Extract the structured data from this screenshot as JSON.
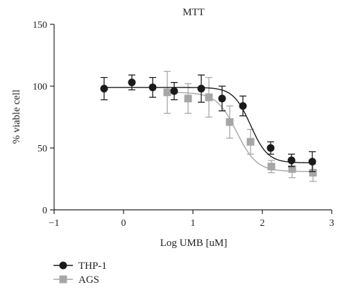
{
  "chart_data": {
    "type": "scatter",
    "title": "MTT",
    "xlabel": "Log UMB [uM]",
    "ylabel": "% viable cell",
    "xlim": [
      -1,
      3
    ],
    "ylim": [
      0,
      150
    ],
    "xticks": [
      -1,
      0,
      1,
      2,
      3
    ],
    "xtick_labels": [
      "−1",
      "0",
      "1",
      "2",
      "3"
    ],
    "yticks": [
      0,
      50,
      100,
      150
    ],
    "ytick_labels": [
      "0",
      "50",
      "100",
      "150"
    ],
    "legend_position": "bottom-left",
    "series": [
      {
        "name": "THP-1",
        "color": "#1a1a1a",
        "marker": "circle",
        "fit": {
          "top": 99,
          "bottom": 38,
          "log_ic50": 1.83,
          "hill": -3.5
        },
        "points": [
          {
            "x": -0.28,
            "y": 98,
            "err": 9
          },
          {
            "x": 0.12,
            "y": 103,
            "err": 6
          },
          {
            "x": 0.42,
            "y": 99,
            "err": 8
          },
          {
            "x": 0.73,
            "y": 96,
            "err": 7
          },
          {
            "x": 1.12,
            "y": 98,
            "err": 11
          },
          {
            "x": 1.42,
            "y": 90,
            "err": 10
          },
          {
            "x": 1.72,
            "y": 84,
            "err": 8
          },
          {
            "x": 2.12,
            "y": 50,
            "err": 5
          },
          {
            "x": 2.42,
            "y": 40,
            "err": 5
          },
          {
            "x": 2.72,
            "y": 39,
            "err": 8
          }
        ]
      },
      {
        "name": "AGS",
        "color": "#a6a6a6",
        "marker": "square",
        "fit": {
          "top": 95,
          "bottom": 31,
          "log_ic50": 1.63,
          "hill": -3.0
        },
        "points": [
          {
            "x": 0.63,
            "y": 95,
            "err": 17
          },
          {
            "x": 0.93,
            "y": 90,
            "err": 12
          },
          {
            "x": 1.23,
            "y": 91,
            "err": 16
          },
          {
            "x": 1.53,
            "y": 71,
            "err": 13
          },
          {
            "x": 1.83,
            "y": 55,
            "err": 10
          },
          {
            "x": 2.13,
            "y": 35,
            "err": 5
          },
          {
            "x": 2.43,
            "y": 33,
            "err": 7
          },
          {
            "x": 2.73,
            "y": 30,
            "err": 7
          }
        ]
      }
    ]
  }
}
